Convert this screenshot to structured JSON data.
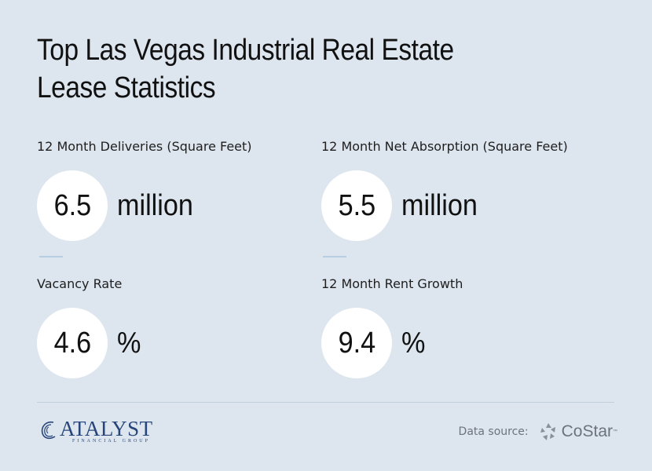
{
  "title": {
    "line1": "Top Las Vegas Industrial Real Estate",
    "line2": "Lease Statistics"
  },
  "stats": [
    {
      "label": "12 Month Deliveries (Square Feet)",
      "value": "6.5",
      "unit": "million"
    },
    {
      "label": "12 Month Net Absorption (Square Feet)",
      "value": "5.5",
      "unit": "million"
    },
    {
      "label": "Vacancy Rate",
      "value": "4.6",
      "unit": "%"
    },
    {
      "label": "12 Month Rent Growth",
      "value": "9.4",
      "unit": "%"
    }
  ],
  "footer": {
    "brand_name": "ATALYST",
    "brand_sub": "FINANCIAL GROUP",
    "source_label": "Data source:",
    "source_name": "CoStar",
    "source_tm": "™"
  },
  "colors": {
    "background": "#dde6ef",
    "brand": "#27457a",
    "accent": "#b7cde2"
  }
}
